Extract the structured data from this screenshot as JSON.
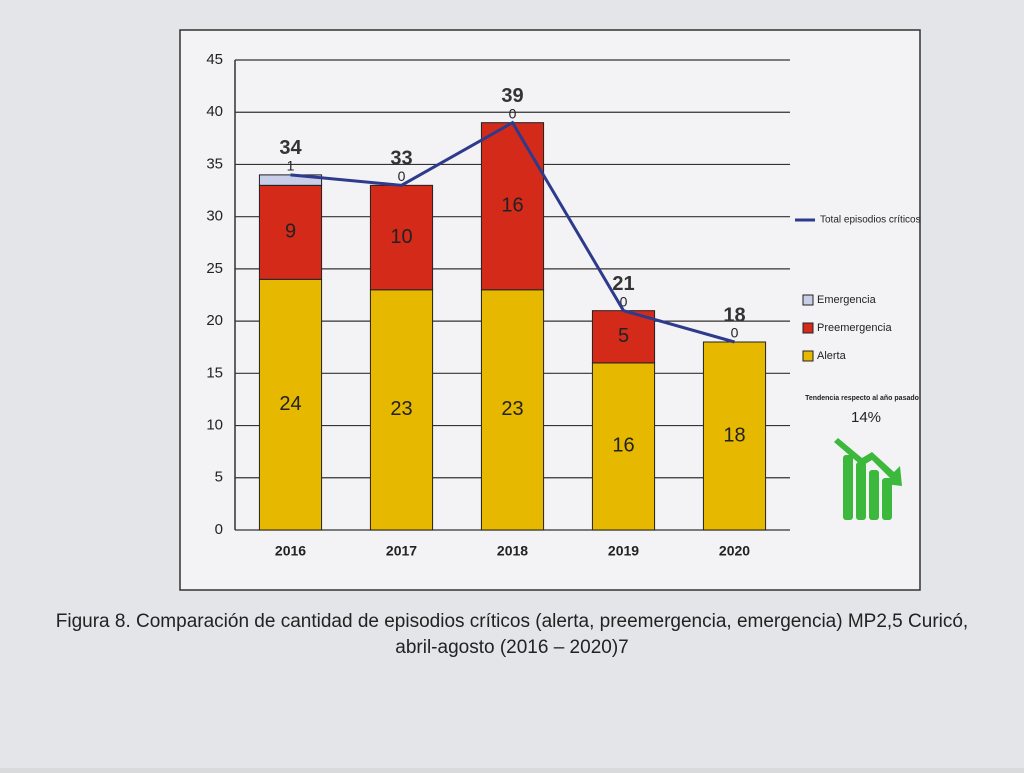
{
  "chart_data": {
    "type": "stacked-bar-line",
    "categories": [
      "2016",
      "2017",
      "2018",
      "2019",
      "2020"
    ],
    "series": [
      {
        "name": "Alerta",
        "color": "#e6b800",
        "values": [
          24,
          23,
          23,
          16,
          18
        ]
      },
      {
        "name": "Preemergencia",
        "color": "#d42a1a",
        "values": [
          9,
          10,
          16,
          5,
          0
        ]
      },
      {
        "name": "Emergencia",
        "color": "#c8cde8",
        "values": [
          1,
          0,
          0,
          0,
          0
        ]
      }
    ],
    "line": {
      "name": "Total episodios críticos",
      "color": "#2e3a8c",
      "values": [
        34,
        33,
        39,
        21,
        18
      ]
    },
    "ylim": [
      0,
      45
    ],
    "yticks": [
      0,
      5,
      10,
      15,
      20,
      25,
      30,
      35,
      40,
      45
    ],
    "grid": true,
    "annotation": "Tendencia respecto al año pasado",
    "trend": "14%",
    "caption": [
      "Figura 8. Comparación de cantidad de episodios críticos (alerta, preemergencia, emergencia) MP2,5 Curicó,",
      "abril-agosto (2016 – 2020)7"
    ]
  }
}
